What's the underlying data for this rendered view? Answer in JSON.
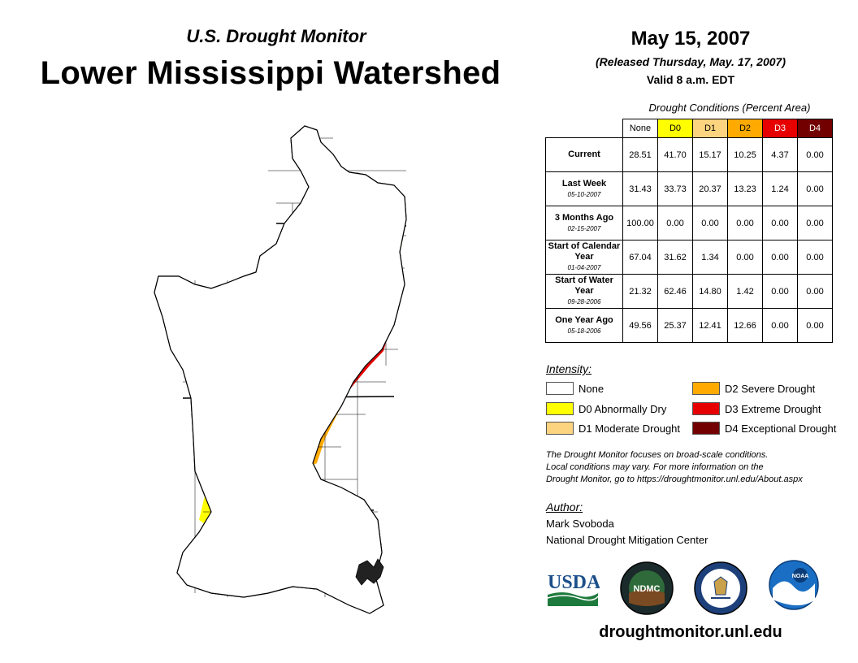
{
  "header": {
    "subtitle": "U.S. Drought Monitor",
    "title": "Lower Mississippi Watershed",
    "date": "May 15, 2007",
    "released": "(Released Thursday, May. 17, 2007)",
    "valid": "Valid 8 a.m. EDT"
  },
  "colors": {
    "none": "#ffffff",
    "d0": "#ffff00",
    "d1": "#fcd37f",
    "d2": "#ffaa00",
    "d3": "#e60000",
    "d4": "#730000",
    "river": "#33bbee"
  },
  "table": {
    "caption": "Drought Conditions (Percent Area)",
    "columns": [
      "None",
      "D0",
      "D1",
      "D2",
      "D3",
      "D4"
    ],
    "rows": [
      {
        "label": "Current",
        "date": "",
        "values": [
          "28.51",
          "41.70",
          "15.17",
          "10.25",
          "4.37",
          "0.00"
        ]
      },
      {
        "label": "Last Week",
        "date": "05-10-2007",
        "values": [
          "31.43",
          "33.73",
          "20.37",
          "13.23",
          "1.24",
          "0.00"
        ]
      },
      {
        "label": "3 Months Ago",
        "date": "02-15-2007",
        "values": [
          "100.00",
          "0.00",
          "0.00",
          "0.00",
          "0.00",
          "0.00"
        ]
      },
      {
        "label": "Start of Calendar Year",
        "date": "01-04-2007",
        "values": [
          "67.04",
          "31.62",
          "1.34",
          "0.00",
          "0.00",
          "0.00"
        ]
      },
      {
        "label": "Start of Water Year",
        "date": "09-28-2006",
        "values": [
          "21.32",
          "62.46",
          "14.80",
          "1.42",
          "0.00",
          "0.00"
        ]
      },
      {
        "label": "One Year Ago",
        "date": "05-18-2006",
        "values": [
          "49.56",
          "25.37",
          "12.41",
          "12.66",
          "0.00",
          "0.00"
        ]
      }
    ]
  },
  "legend": {
    "title": "Intensity:",
    "items": {
      "none": "None",
      "d0": "D0 Abnormally Dry",
      "d1": "D1 Moderate Drought",
      "d2": "D2 Severe Drought",
      "d3": "D3 Extreme Drought",
      "d4": "D4 Exceptional Drought"
    }
  },
  "note": {
    "line1": "The Drought Monitor focuses on broad-scale conditions.",
    "line2": "Local conditions may vary. For more information on the",
    "line3": "Drought Monitor, go to https://droughtmonitor.unl.edu/About.aspx"
  },
  "author": {
    "title": "Author:",
    "name": "Mark Svoboda",
    "org": "National Drought Mitigation Center"
  },
  "logos": {
    "usda": "USDA",
    "ndmc": "NDMC",
    "noaa": "NOAA"
  },
  "footer": {
    "website": "droughtmonitor.unl.edu"
  }
}
